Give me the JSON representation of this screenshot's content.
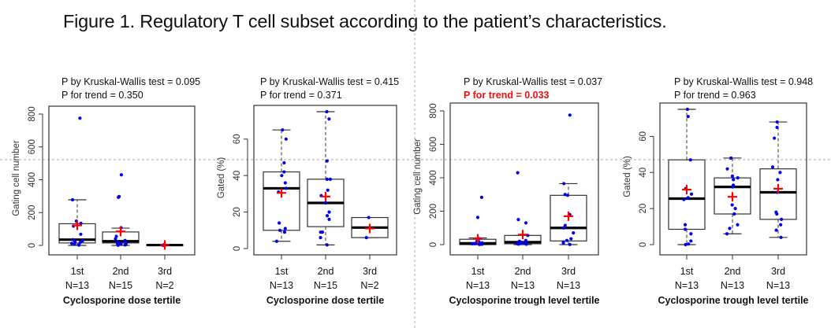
{
  "figure": {
    "title": "Figure 1. Regulatory T cell subset according to the patient’s characteristics."
  },
  "colors": {
    "point": "#0000ee",
    "mean_marker": "#ff0000",
    "highlight_text": "#ee1111",
    "axis": "#333333"
  },
  "chart_data": [
    {
      "type": "box",
      "kw_label": "P by Kruskal-Wallis test = 0.095",
      "trend_label": "P for trend = 0.350",
      "trend_highlight": false,
      "ylabel": "Gating cell number",
      "xlabel": "Cyclosporine dose tertile",
      "ylim": [
        0,
        800
      ],
      "yticks": [
        0,
        200,
        400,
        600,
        800
      ],
      "categories": [
        "1st",
        "2nd",
        "3rd"
      ],
      "n_labels": [
        "N=13",
        "N=15",
        "N=2"
      ],
      "boxes": [
        {
          "whisker_low": 0,
          "q1": 15,
          "median": 35,
          "q3": 132,
          "whisker_high": 278,
          "mean": 122,
          "points": [
            775,
            278,
            148,
            135,
            118,
            68,
            35,
            28,
            22,
            18,
            12,
            8,
            2
          ]
        },
        {
          "whisker_low": 0,
          "q1": 15,
          "median": 25,
          "q3": 82,
          "whisker_high": 105,
          "mean": 85,
          "points": [
            430,
            298,
            293,
            108,
            55,
            40,
            30,
            18,
            15,
            12,
            10,
            8,
            5,
            3,
            1
          ]
        },
        {
          "whisker_low": 0,
          "q1": 0,
          "median": 2,
          "q3": 4,
          "whisker_high": 6,
          "mean": 3,
          "points": [
            5,
            1
          ]
        }
      ]
    },
    {
      "type": "box",
      "kw_label": "P by Kruskal-Wallis test = 0.415",
      "trend_label": "P for trend = 0.371",
      "trend_highlight": false,
      "ylabel": "Gated (%)",
      "xlabel": "Cyclosporine dose tertile",
      "ylim": [
        0,
        75
      ],
      "yticks": [
        0,
        20,
        40,
        60
      ],
      "categories": [
        "1st",
        "2nd",
        "3rd"
      ],
      "n_labels": [
        "N=13",
        "N=15",
        "N=2"
      ],
      "boxes": [
        {
          "whisker_low": 4,
          "q1": 10,
          "median": 33,
          "q3": 42,
          "whisker_high": 65,
          "mean": 30.5,
          "points": [
            65,
            60,
            47,
            42,
            40,
            36,
            33,
            31,
            14,
            11,
            10,
            9,
            4
          ]
        },
        {
          "whisker_low": 2,
          "q1": 12,
          "median": 25,
          "q3": 38,
          "whisker_high": 75,
          "mean": 28.5,
          "points": [
            75,
            71,
            48,
            38,
            38,
            32,
            29,
            25,
            20,
            18,
            16,
            9,
            9,
            6,
            2
          ]
        },
        {
          "whisker_low": 6,
          "q1": 6,
          "median": 11.5,
          "q3": 17,
          "whisker_high": 17,
          "mean": 11,
          "points": [
            17,
            6
          ]
        }
      ]
    },
    {
      "type": "box",
      "kw_label": "P by Kruskal-Wallis test = 0.037",
      "trend_label": "P for trend = 0.033",
      "trend_highlight": true,
      "ylabel": "Gating cell number",
      "xlabel": "Cyclosporine trough level tertile",
      "ylim": [
        0,
        800
      ],
      "yticks": [
        0,
        200,
        400,
        600,
        800
      ],
      "categories": [
        "1st",
        "2nd",
        "3rd"
      ],
      "n_labels": [
        "N=13",
        "N=13",
        "N=13"
      ],
      "boxes": [
        {
          "whisker_low": 0,
          "q1": 0,
          "median": 8,
          "q3": 32,
          "whisker_high": 40,
          "mean": 35,
          "points": [
            283,
            163,
            35,
            20,
            15,
            10,
            8,
            6,
            5,
            4,
            3,
            2,
            1
          ]
        },
        {
          "whisker_low": 0,
          "q1": 5,
          "median": 15,
          "q3": 55,
          "whisker_high": 55,
          "mean": 60,
          "points": [
            430,
            150,
            130,
            55,
            25,
            20,
            15,
            12,
            10,
            8,
            5,
            3,
            2
          ]
        },
        {
          "whisker_low": 0,
          "q1": 22,
          "median": 100,
          "q3": 295,
          "whisker_high": 365,
          "mean": 170,
          "points": [
            775,
            365,
            300,
            295,
            180,
            115,
            100,
            70,
            35,
            25,
            15,
            10,
            1
          ]
        }
      ]
    },
    {
      "type": "box",
      "kw_label": "P by Kruskal-Wallis test = 0.948",
      "trend_label": "P for trend = 0.963",
      "trend_highlight": false,
      "ylabel": "Gated (%)",
      "xlabel": "Cyclosporine trough level tertile",
      "ylim": [
        0,
        75
      ],
      "yticks": [
        0,
        20,
        40,
        60
      ],
      "categories": [
        "1st",
        "2nd",
        "3rd"
      ],
      "n_labels": [
        "N=13",
        "N=13",
        "N=13"
      ],
      "boxes": [
        {
          "whisker_low": 0,
          "q1": 8.5,
          "median": 25.5,
          "q3": 47,
          "whisker_high": 75,
          "mean": 30.5,
          "points": [
            75,
            71,
            47,
            31,
            28,
            26,
            25,
            11,
            8.5,
            6,
            2,
            0,
            0.3
          ]
        },
        {
          "whisker_low": 6,
          "q1": 17,
          "median": 32,
          "q3": 37,
          "whisker_high": 48,
          "mean": 26.5,
          "points": [
            48,
            42,
            38,
            37,
            36,
            33,
            32,
            22,
            20,
            17,
            11,
            9,
            6
          ]
        },
        {
          "whisker_low": 4,
          "q1": 14,
          "median": 29,
          "q3": 42,
          "whisker_high": 68,
          "mean": 31,
          "points": [
            68,
            65,
            59,
            43,
            40,
            36,
            29,
            18,
            17,
            14,
            11,
            8,
            4
          ]
        }
      ]
    }
  ]
}
